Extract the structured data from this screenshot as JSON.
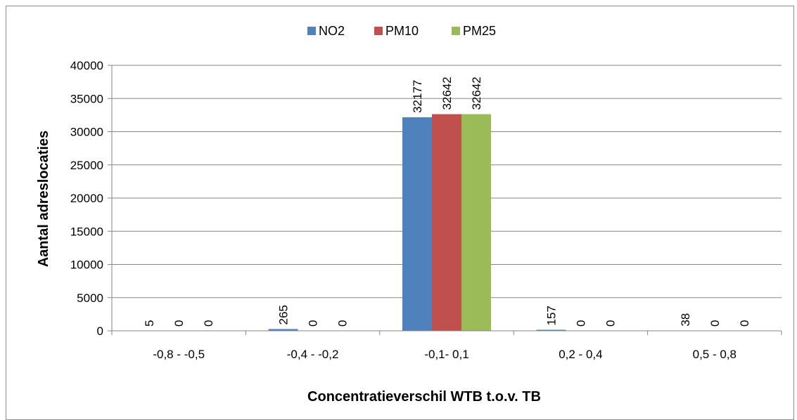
{
  "chart_data": {
    "type": "bar",
    "title": "",
    "xlabel": "Concentratieverschil WTB t.o.v. TB",
    "ylabel": "Aantal adreslocaties",
    "categories": [
      "-0,8 - -0,5",
      "-0,4 - -0,2",
      "-0,1- 0,1",
      "0,2 - 0,4",
      "0,5 - 0,8"
    ],
    "series": [
      {
        "name": "NO2",
        "color": "#4f81bd",
        "values": [
          5,
          265,
          32177,
          157,
          38
        ]
      },
      {
        "name": "PM10",
        "color": "#c0504d",
        "values": [
          0,
          0,
          32642,
          0,
          0
        ]
      },
      {
        "name": "PM25",
        "color": "#9bbb59",
        "values": [
          0,
          0,
          32642,
          0,
          0
        ]
      }
    ],
    "ylim": [
      0,
      40000
    ],
    "yticks": [
      0,
      5000,
      10000,
      15000,
      20000,
      25000,
      30000,
      35000,
      40000
    ],
    "ytick_labels": [
      "0",
      "5000",
      "10000",
      "15000",
      "20000",
      "25000",
      "30000",
      "35000",
      "40000"
    ],
    "grid": true,
    "legend_position": "top"
  }
}
